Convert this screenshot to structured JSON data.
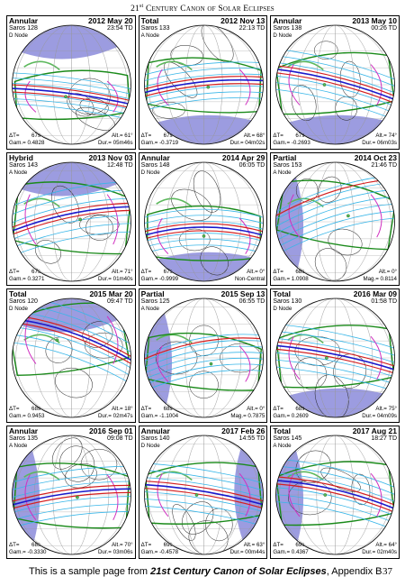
{
  "header": {
    "prefix": "21",
    "sup": "st",
    "title": "Century Canon of Solar Eclipses"
  },
  "footer": {
    "text_before": "This is a sample page from ",
    "title": "21st Century Canon of Solar Eclipses",
    "text_after": ", Appendix B",
    "page_number": "37"
  },
  "colors": {
    "ocean": "#ffffff",
    "land": "#5cb85c",
    "night": "#7b7bd6",
    "central": "#1a1acc",
    "limit": "#d42020",
    "penumbra": "#1a8a1a",
    "contour": "#38b6e8",
    "magenta": "#d030c0"
  },
  "eclipses": [
    {
      "type": "Annular",
      "date": "2012 May 20",
      "saros": "Saros 128",
      "time": "23:54 TD",
      "node": "D Node",
      "dt": "ΔT=",
      "dt_value": "67s",
      "gamma": "Gam.= 0.4828",
      "alt": "Alt.= 61°",
      "dur": "Dur.= 05m46s"
    },
    {
      "type": "Total",
      "date": "2012 Nov 13",
      "saros": "Saros 133",
      "time": "22:13 TD",
      "node": "A Node",
      "dt": "ΔT=",
      "dt_value": "67s",
      "gamma": "Gam.= -0.3719",
      "alt": "Alt.= 68°",
      "dur": "Dur.= 04m02s"
    },
    {
      "type": "Annular",
      "date": "2013 May 10",
      "saros": "Saros 138",
      "time": "00:26 TD",
      "node": "D Node",
      "dt": "ΔT=",
      "dt_value": "67s",
      "gamma": "Gam.= -0.2693",
      "alt": "Alt.= 74°",
      "dur": "Dur.= 06m03s"
    },
    {
      "type": "Hybrid",
      "date": "2013 Nov 03",
      "saros": "Saros 143",
      "time": "12:48 TD",
      "node": "A Node",
      "dt": "ΔT=",
      "dt_value": "67s",
      "gamma": "Gam.= 0.3271",
      "alt": "Alt.= 71°",
      "dur": "Dur.= 01m40s"
    },
    {
      "type": "Annular",
      "date": "2014 Apr 29",
      "saros": "Saros 148",
      "time": "06:05 TD",
      "node": "D Node",
      "dt": "ΔT=",
      "dt_value": "67s",
      "gamma": "Gam.= -0.9999",
      "alt": "Alt.= 0°",
      "dur": "Non-Central"
    },
    {
      "type": "Partial",
      "date": "2014 Oct 23",
      "saros": "Saros 153",
      "time": "21:46 TD",
      "node": "A Node",
      "dt": "ΔT=",
      "dt_value": "68s",
      "gamma": "Gam.= 1.0908",
      "alt": "Alt.= 0°",
      "dur": "Mag.= 0.8114"
    },
    {
      "type": "Total",
      "date": "2015 Mar 20",
      "saros": "Saros 120",
      "time": "09:47 TD",
      "node": "D Node",
      "dt": "ΔT=",
      "dt_value": "68s",
      "gamma": "Gam.= 0.9453",
      "alt": "Alt.= 18°",
      "dur": "Dur.= 02m47s"
    },
    {
      "type": "Partial",
      "date": "2015 Sep 13",
      "saros": "Saros 125",
      "time": "06:55 TD",
      "node": "A Node",
      "dt": "ΔT=",
      "dt_value": "68s",
      "gamma": "Gam.= -1.1004",
      "alt": "Alt.= 0°",
      "dur": "Mag.= 0.7875"
    },
    {
      "type": "Total",
      "date": "2016 Mar 09",
      "saros": "Saros 130",
      "time": "01:58 TD",
      "node": "D Node",
      "dt": "ΔT=",
      "dt_value": "68s",
      "gamma": "Gam.= 0.2609",
      "alt": "Alt.= 75°",
      "dur": "Dur.= 04m09s"
    },
    {
      "type": "Annular",
      "date": "2016 Sep 01",
      "saros": "Saros 135",
      "time": "09:08 TD",
      "node": "A Node",
      "dt": "ΔT=",
      "dt_value": "68s",
      "gamma": "Gam.= -0.3330",
      "alt": "Alt.= 70°",
      "dur": "Dur.= 03m06s"
    },
    {
      "type": "Annular",
      "date": "2017 Feb 26",
      "saros": "Saros 140",
      "time": "14:55 TD",
      "node": "D Node",
      "dt": "ΔT=",
      "dt_value": "69s",
      "gamma": "Gam.= -0.4578",
      "alt": "Alt.= 63°",
      "dur": "Dur.= 00m44s"
    },
    {
      "type": "Total",
      "date": "2017 Aug 21",
      "saros": "Saros 145",
      "time": "18:27 TD",
      "node": "A Node",
      "dt": "ΔT=",
      "dt_value": "69s",
      "gamma": "Gam.= 0.4367",
      "alt": "Alt.= 64°",
      "dur": "Dur.= 02m40s"
    }
  ]
}
